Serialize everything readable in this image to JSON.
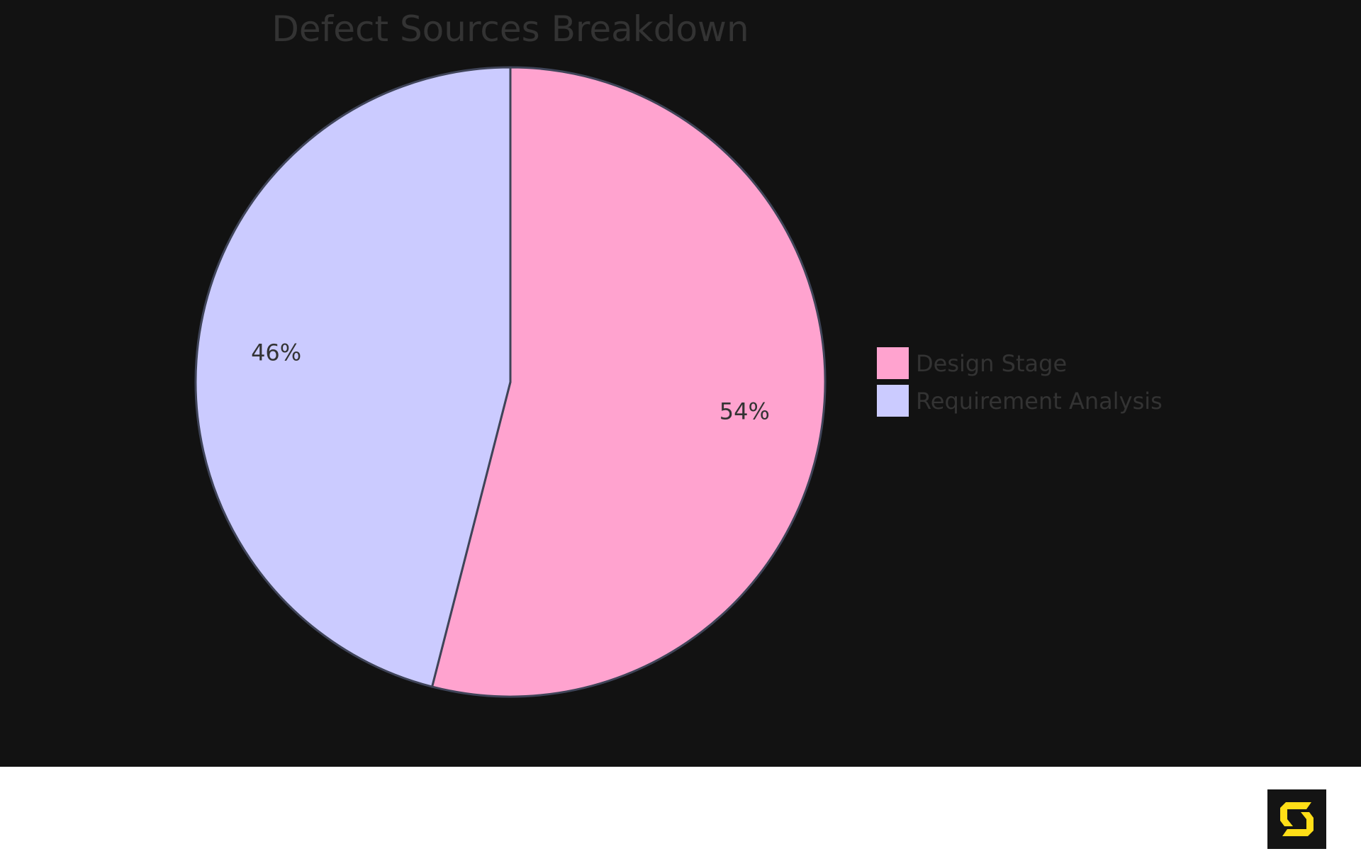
{
  "chart_data": {
    "type": "pie",
    "title": "Defect Sources Breakdown",
    "slices": [
      {
        "label": "Design Stage",
        "value": 54,
        "display": "54%",
        "color": "#ffa3cf"
      },
      {
        "label": "Requirement Analysis",
        "value": 46,
        "display": "46%",
        "color": "#cbcbff"
      }
    ],
    "start_angle": "top, clockwise",
    "legend_placement": "right",
    "background": "#121212",
    "stroke_color": "#3f4458"
  },
  "logo": {
    "name": "logo-icon",
    "color": "#ffde17"
  }
}
